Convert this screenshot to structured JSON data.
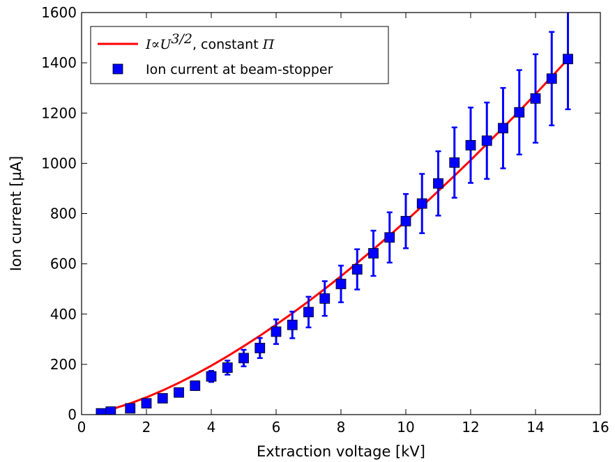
{
  "chart_data": {
    "type": "scatter",
    "xlabel": "Extraction voltage [kV]",
    "ylabel": "Ion current [µA]",
    "xlim": [
      0,
      16
    ],
    "ylim": [
      0,
      1600
    ],
    "xticks": [
      0,
      2,
      4,
      6,
      8,
      10,
      12,
      14,
      16
    ],
    "yticks": [
      0,
      200,
      400,
      600,
      800,
      1000,
      1200,
      1400,
      1600
    ],
    "grid": false,
    "legend_position": "top-left",
    "series": [
      {
        "name": "I∝U^{3/2}, constant Π",
        "legend_math": "I∝U",
        "legend_exp": "3/2",
        "legend_rest": ", constant ",
        "legend_pi": "Π",
        "kind": "line",
        "color": "#ff0000",
        "model": "I = k * U^1.5",
        "x": [
          0.6,
          1,
          1.5,
          2,
          2.5,
          3,
          3.5,
          4,
          4.5,
          5,
          5.5,
          6,
          6.5,
          7,
          7.5,
          8,
          8.5,
          9,
          9.5,
          10,
          10.5,
          11,
          11.5,
          12,
          12.5,
          13,
          13.5,
          14,
          14.5,
          15
        ],
        "y": [
          11.3,
          24.3,
          44.7,
          68.9,
          96.2,
          126.4,
          159.4,
          194.8,
          232.4,
          272.2,
          314.0,
          357.9,
          403.5,
          451.0,
          500.2,
          551.0,
          603.6,
          657.7,
          713.4,
          770.6,
          829.1,
          889.5,
          950.8,
          1012.6,
          1076.9,
          1141.6,
          1207.8,
          1275.5,
          1344.6,
          1415.0
        ]
      },
      {
        "name": "Ion current at beam-stopper",
        "kind": "errorbar",
        "color": "#0000ff",
        "marker": "square",
        "x": [
          0.6,
          0.9,
          1.5,
          2,
          2.5,
          3,
          3.5,
          4,
          4.5,
          5,
          5.5,
          6,
          6.5,
          7,
          7.5,
          8,
          8.5,
          9,
          9.5,
          10,
          10.5,
          11,
          11.5,
          12,
          12.5,
          13,
          13.5,
          14,
          14.5,
          15
        ],
        "y": [
          5,
          12,
          25,
          45,
          65,
          88,
          115,
          152,
          187,
          225,
          265,
          330,
          357,
          408,
          462,
          520,
          578,
          642,
          705,
          770,
          840,
          920,
          1003,
          1072,
          1090,
          1140,
          1203,
          1258,
          1337,
          1415
        ],
        "yerr": [
          1,
          2,
          4,
          7,
          10,
          13,
          17,
          22,
          28,
          33,
          40,
          49,
          53,
          61,
          69,
          73,
          80,
          90,
          100,
          108,
          118,
          128,
          140,
          150,
          152,
          160,
          168,
          176,
          186,
          200
        ]
      }
    ]
  }
}
